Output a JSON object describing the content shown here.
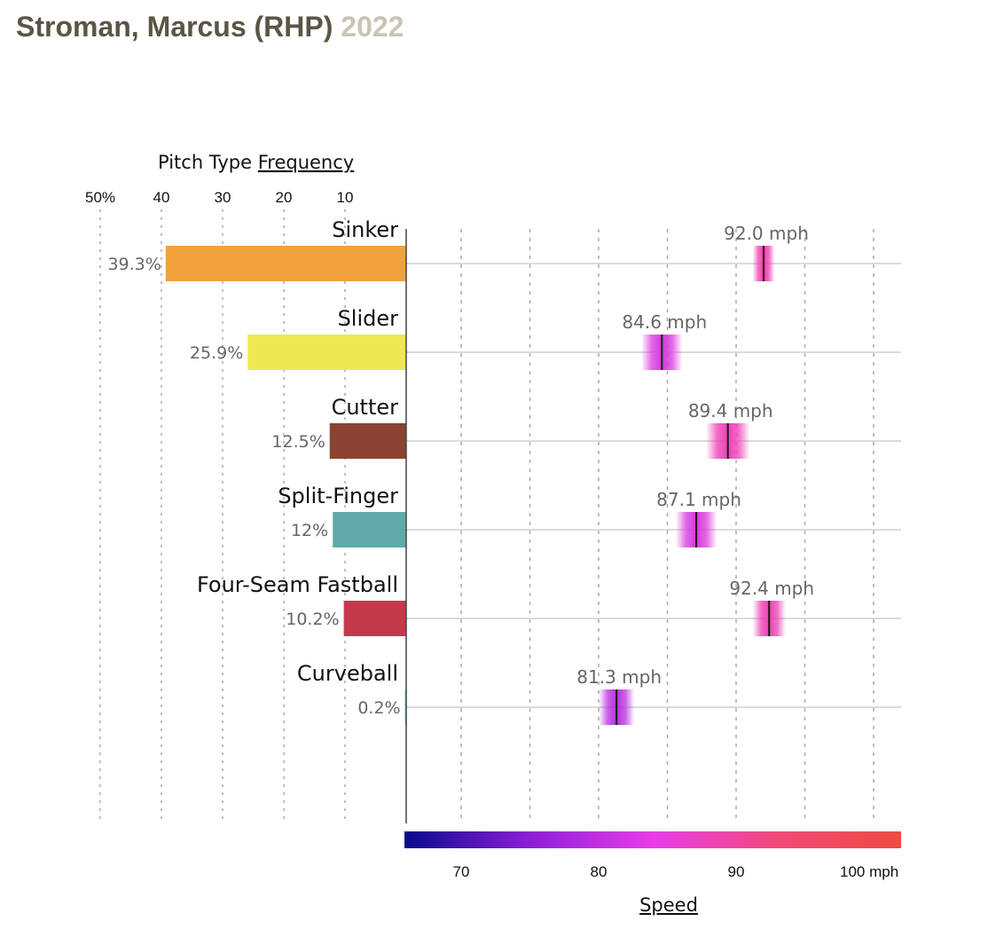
{
  "header": {
    "player": "Stroman, Marcus (RHP)",
    "year": "2022"
  },
  "chart_data": {
    "type": "bar",
    "frequency_axis": {
      "title_prefix": "Pitch Type",
      "title_link": "Frequency",
      "ticks": [
        "50%",
        "40",
        "30",
        "20",
        "10"
      ],
      "tick_values": [
        50,
        40,
        30,
        20,
        10
      ],
      "range": [
        0,
        50
      ],
      "grid": true
    },
    "speed_axis": {
      "title": "Speed",
      "ticks": [
        "70",
        "80",
        "90",
        "100 mph"
      ],
      "tick_values": [
        70,
        80,
        90,
        100
      ],
      "range": [
        66,
        102
      ],
      "grid": true,
      "colorscale": [
        "#0a0a8c",
        "#8a1ed6",
        "#e83de8",
        "#f04a7a",
        "#f04a40"
      ]
    },
    "categories": [
      "Sinker",
      "Slider",
      "Cutter",
      "Split-Finger",
      "Four-Seam Fastball",
      "Curveball"
    ],
    "series": [
      {
        "name": "Frequency",
        "values": [
          39.3,
          25.9,
          12.5,
          12,
          10.2,
          0.2
        ],
        "labels": [
          "39.3%",
          "25.9%",
          "12.5%",
          "12%",
          "10.2%",
          "0.2%"
        ],
        "colors": [
          "#f0a23c",
          "#ece851",
          "#8a4332",
          "#5eaaa9",
          "#c5394c",
          "#5bc8dd"
        ]
      },
      {
        "name": "Speed",
        "values": [
          92.0,
          84.6,
          89.4,
          87.1,
          92.4,
          81.3
        ],
        "labels": [
          "92.0 mph",
          "84.6 mph",
          "89.4 mph",
          "87.1 mph",
          "92.4 mph",
          "81.3 mph"
        ],
        "spread": [
          0.8,
          1.5,
          1.6,
          1.5,
          1.2,
          1.3
        ]
      }
    ]
  }
}
